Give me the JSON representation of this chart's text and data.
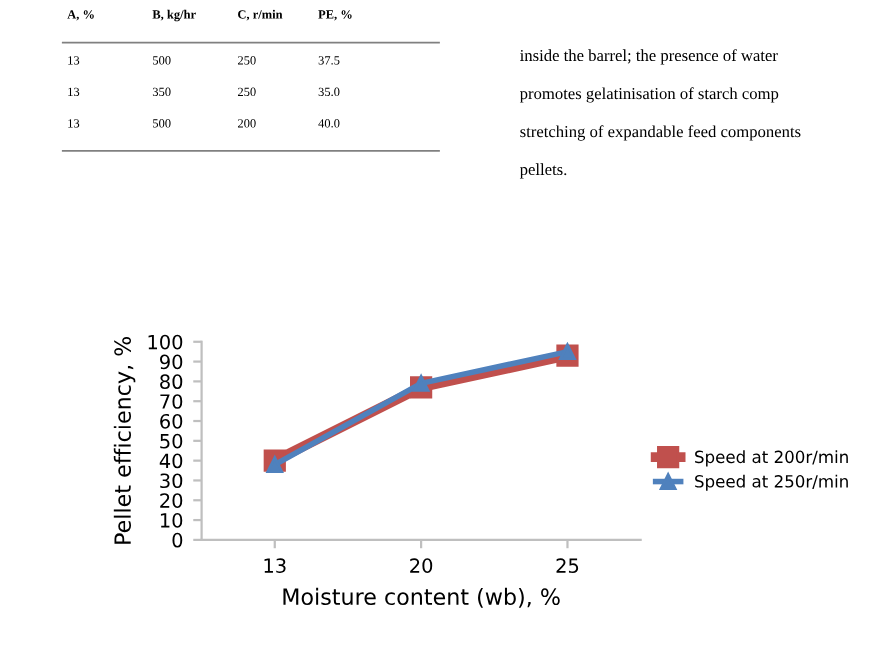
{
  "chart_data": {
    "type": "line",
    "categories": [
      "13",
      "20",
      "25"
    ],
    "series": [
      {
        "name": "Speed at 200r/min",
        "color": "#c0504d",
        "values": [
          40,
          77,
          93
        ],
        "marker": "square"
      },
      {
        "name": "Speed at 250r/min",
        "color": "#4f81bd",
        "values": [
          38,
          79,
          95
        ],
        "marker": "triangle"
      }
    ],
    "xlabel": "Moisture content (wb), %",
    "ylabel": "Pellet efficiency, %",
    "ylim": [
      0,
      100
    ],
    "yticks": [
      0,
      10,
      20,
      30,
      40,
      50,
      60,
      70,
      80,
      90,
      100
    ],
    "grid": false,
    "legend": "right",
    "annotations": [
      "A, %",
      "B, kg/hr",
      "C, r/min",
      "PE, %",
      "13",
      "500",
      "250",
      "37.5",
      "13",
      "350",
      "250",
      "35.0",
      "13",
      "500",
      "200",
      "40.0",
      "inside the barrel; the presence of water",
      "promotes gelatinisation of starch comp",
      "stretching of expandable feed components",
      "pellets."
    ]
  }
}
